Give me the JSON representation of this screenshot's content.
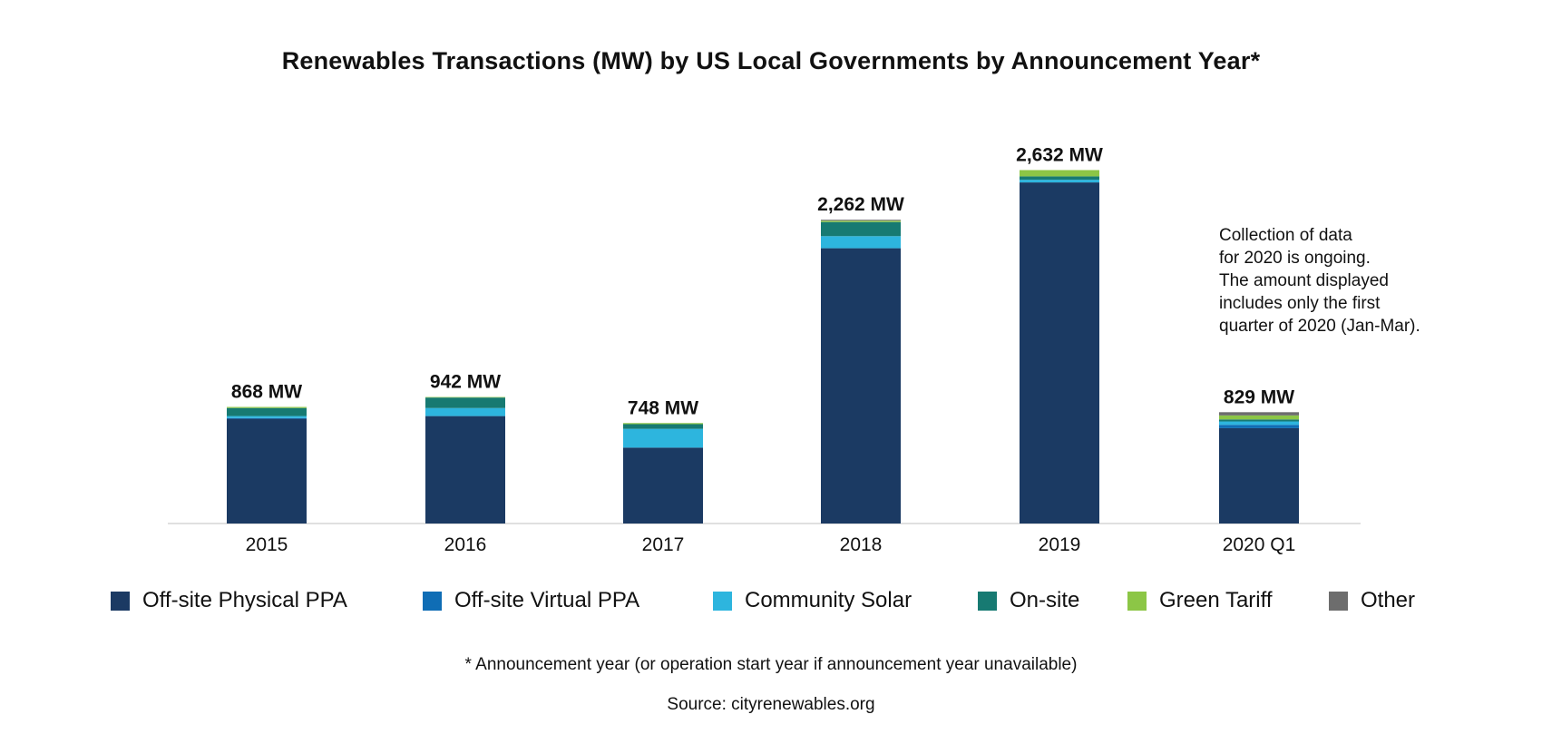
{
  "chart_data": {
    "type": "bar",
    "stacked": true,
    "title": "Renewables Transactions (MW) by US Local Governments by Announcement Year*",
    "xlabel": "",
    "ylabel": "",
    "ylim": [
      0,
      3000
    ],
    "grid": false,
    "legend_position": "bottom",
    "categories": [
      "2015",
      "2016",
      "2017",
      "2018",
      "2019",
      "2020 Q1"
    ],
    "totals": [
      868,
      942,
      748,
      2262,
      2632,
      829
    ],
    "total_labels": [
      "868 MW",
      "942 MW",
      "748 MW",
      "2,262 MW",
      "2,632 MW",
      "829 MW"
    ],
    "series": [
      {
        "name": "Off-site Physical PPA",
        "color": "#1b3a63",
        "values": [
          780,
          800,
          565,
          2050,
          2540,
          710
        ]
      },
      {
        "name": "Off-site Virtual PPA",
        "color": "#0f6db5",
        "values": [
          5,
          0,
          0,
          0,
          0,
          25
        ]
      },
      {
        "name": "Community Solar",
        "color": "#2db5de",
        "values": [
          15,
          60,
          140,
          90,
          20,
          25
        ]
      },
      {
        "name": "On-site",
        "color": "#177a72",
        "values": [
          60,
          78,
          35,
          105,
          25,
          15
        ]
      },
      {
        "name": "Green Tariff",
        "color": "#8cc646",
        "values": [
          8,
          4,
          8,
          10,
          47,
          30
        ]
      },
      {
        "name": "Other",
        "color": "#6d6d6d",
        "values": [
          0,
          0,
          0,
          7,
          0,
          24
        ]
      }
    ]
  },
  "note": {
    "lines": [
      "Collection of data",
      "for 2020 is ongoing.",
      "The amount displayed",
      "includes only the first",
      "quarter of 2020 (Jan-Mar)."
    ]
  },
  "footnote": "* Announcement year (or operation start year if announcement year unavailable)",
  "source": "Source: cityrenewables.org"
}
